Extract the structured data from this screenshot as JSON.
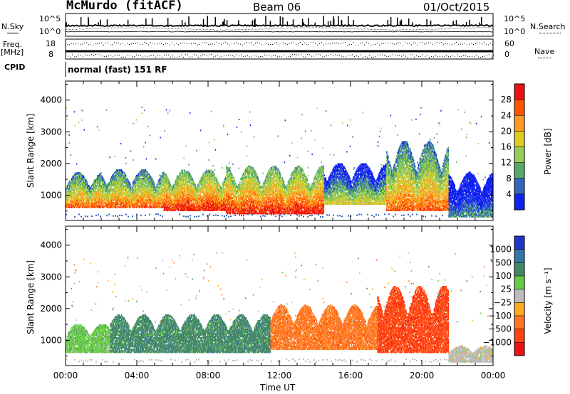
{
  "header": {
    "station": "McMurdo (fitACF)",
    "beam": "Beam 06",
    "date": "01/Oct/2015"
  },
  "strip": {
    "nsky_label": "N.Sky",
    "nsearch_label": "N.Search",
    "nsky_ticks": [
      "10^5",
      "10^0"
    ],
    "nsearch_ticks": [
      "10^5",
      "10^0"
    ],
    "freq_label": "Freq.",
    "freq_unit": "[MHz]",
    "freq_ticks": [
      "18",
      "8"
    ],
    "nave_label": "Nave",
    "nave_ticks": [
      "60",
      "0"
    ],
    "cpid_label": "CPID",
    "cpid_text": "normal (fast) 151 RF"
  },
  "chart_data": [
    {
      "type": "heatmap",
      "panel": "power",
      "ylabel": "Slant Range [km]",
      "xlabel": "",
      "y_ticks": [
        1000,
        2000,
        3000,
        4000
      ],
      "ylim": [
        200,
        4600
      ],
      "x_ticks": [
        "00:00",
        "04:00",
        "08:00",
        "12:00",
        "16:00",
        "20:00",
        "00:00"
      ],
      "xlim_hours": [
        0,
        24
      ],
      "colorbar": {
        "label": "Power [dB]",
        "ticks": [
          "28",
          "24",
          "20",
          "16",
          "12",
          "8",
          "4"
        ],
        "colors": [
          "#ee1111",
          "#ff5500",
          "#ff9922",
          "#ddcc22",
          "#99cc55",
          "#55aa66",
          "#3366bb",
          "#1122ee"
        ]
      },
      "echo_bands": [
        {
          "t_start": 0.0,
          "t_end": 2.0,
          "range_low": 600,
          "range_high": 1700,
          "level": "medium-high"
        },
        {
          "t_start": 2.0,
          "t_end": 5.5,
          "range_low": 600,
          "range_high": 1800,
          "level": "medium-high"
        },
        {
          "t_start": 5.5,
          "t_end": 9.0,
          "range_low": 500,
          "range_high": 1800,
          "level": "high"
        },
        {
          "t_start": 9.0,
          "t_end": 14.5,
          "range_low": 400,
          "range_high": 1900,
          "level": "high"
        },
        {
          "t_start": 14.5,
          "t_end": 18.0,
          "range_low": 700,
          "range_high": 2000,
          "level": "medium"
        },
        {
          "t_start": 18.0,
          "t_end": 21.5,
          "range_low": 500,
          "range_high": 2700,
          "level": "medium-high"
        },
        {
          "t_start": 21.5,
          "t_end": 24.0,
          "range_low": 300,
          "range_high": 1700,
          "level": "low"
        }
      ]
    },
    {
      "type": "heatmap",
      "panel": "velocity",
      "ylabel": "Slant Range [km]",
      "xlabel": "Time UT",
      "y_ticks": [
        1000,
        2000,
        3000,
        4000
      ],
      "ylim": [
        200,
        4600
      ],
      "x_ticks": [
        "00:00",
        "04:00",
        "08:00",
        "12:00",
        "16:00",
        "20:00",
        "00:00"
      ],
      "xlim_hours": [
        0,
        24
      ],
      "colorbar": {
        "label": "Velocity [m s⁻¹]",
        "ticks": [
          "1000",
          "500",
          "100",
          "25",
          "−25",
          "−100",
          "−500",
          "−1000"
        ],
        "colors": [
          "#2233cc",
          "#3377aa",
          "#448866",
          "#66cc44",
          "#bbbbbb",
          "#ffaa22",
          "#ff7722",
          "#ff4411",
          "#ee1111"
        ]
      },
      "echo_bands": [
        {
          "t_start": 0.0,
          "t_end": 2.5,
          "range_low": 600,
          "range_high": 1500,
          "velocity": "25 to 100"
        },
        {
          "t_start": 2.5,
          "t_end": 11.5,
          "range_low": 600,
          "range_high": 1800,
          "velocity": "100 to 500"
        },
        {
          "t_start": 11.5,
          "t_end": 17.5,
          "range_low": 700,
          "range_high": 2100,
          "velocity": "-100 to -500"
        },
        {
          "t_start": 17.5,
          "t_end": 21.5,
          "range_low": 600,
          "range_high": 2700,
          "velocity": "-500 to -1000"
        },
        {
          "t_start": 21.5,
          "t_end": 24.0,
          "range_low": 300,
          "range_high": 800,
          "velocity": "-25 to 25"
        }
      ]
    }
  ]
}
